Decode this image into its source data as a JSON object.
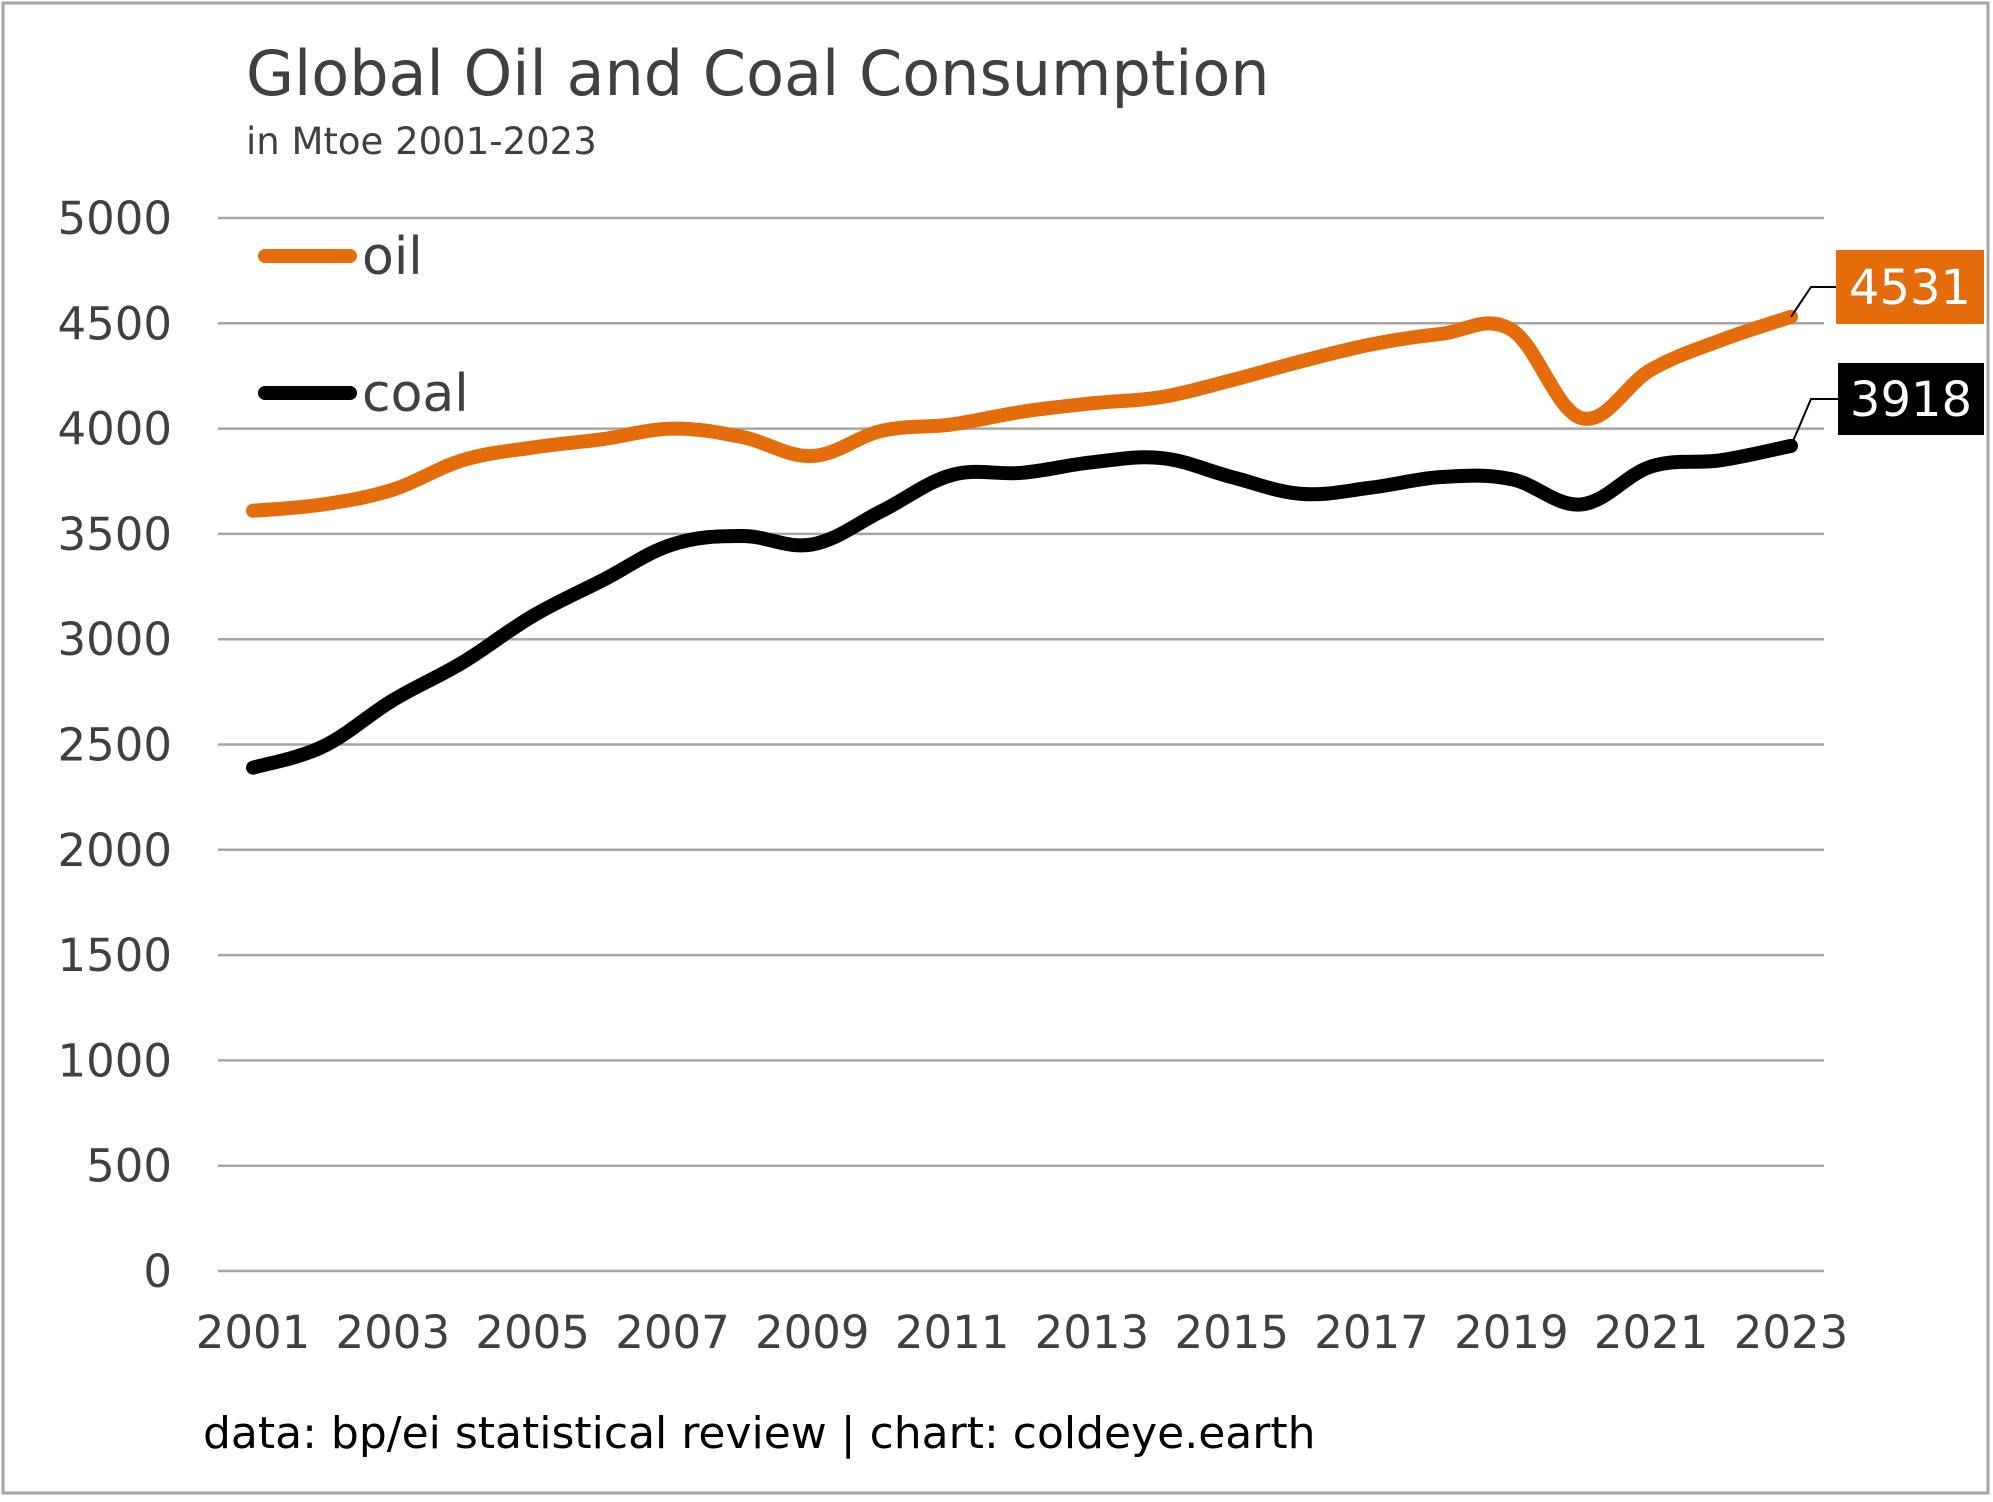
{
  "chart_data": {
    "type": "line",
    "title": "Global Oil and Coal Consumption",
    "subtitle": "in Mtoe 2001-2023",
    "xlabel": "",
    "ylabel": "",
    "ylim": [
      0,
      5000
    ],
    "yticks": [
      "0",
      "500",
      "1000",
      "1500",
      "2000",
      "2500",
      "3000",
      "3500",
      "4000",
      "4500",
      "5000"
    ],
    "x": [
      2001,
      2002,
      2003,
      2004,
      2005,
      2006,
      2007,
      2008,
      2009,
      2010,
      2011,
      2012,
      2013,
      2014,
      2015,
      2016,
      2017,
      2018,
      2019,
      2020,
      2021,
      2022,
      2023
    ],
    "xticks": [
      "2001",
      "2003",
      "2005",
      "2007",
      "2009",
      "2011",
      "2013",
      "2015",
      "2017",
      "2019",
      "2021",
      "2023"
    ],
    "grid": true,
    "legend_position": "top-left",
    "series": [
      {
        "name": "oil",
        "color": "#E46C0A",
        "values": [
          3610,
          3640,
          3710,
          3850,
          3910,
          3950,
          4000,
          3960,
          3870,
          3990,
          4020,
          4080,
          4120,
          4150,
          4230,
          4320,
          4400,
          4450,
          4470,
          4050,
          4280,
          4420,
          4531
        ],
        "end_label": "4531"
      },
      {
        "name": "coal",
        "color": "#000000",
        "values": [
          2390,
          2490,
          2710,
          2890,
          3110,
          3280,
          3450,
          3490,
          3450,
          3610,
          3780,
          3790,
          3840,
          3860,
          3770,
          3690,
          3720,
          3770,
          3760,
          3640,
          3820,
          3850,
          3918
        ],
        "end_label": "3918"
      }
    ],
    "source_note": "data: bp/ei statistical review | chart: coldeye.earth"
  }
}
